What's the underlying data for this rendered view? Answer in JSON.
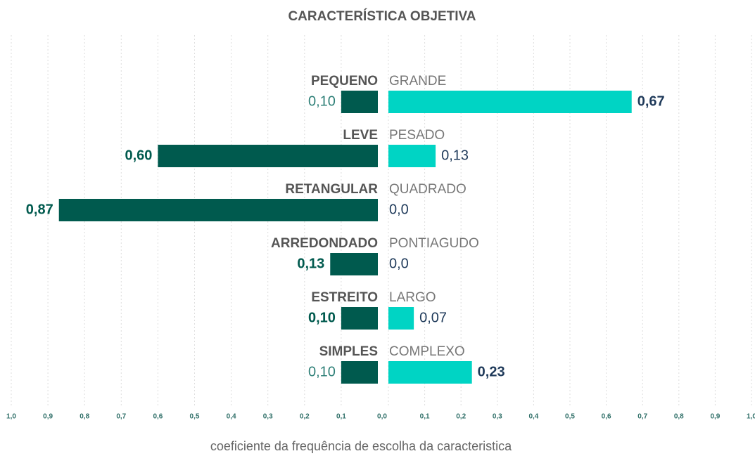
{
  "chart_data": {
    "type": "diverging-bar",
    "title": "CARACTERÍSTICA OBJETIVA",
    "xlabel": "coeficiente da frequência de escolha da caracteristica",
    "left": {
      "categories": [
        "PEQUENO",
        "LEVE",
        "RETANGULAR",
        "ARREDONDADO",
        "ESTREITO",
        "SIMPLES"
      ],
      "values": [
        0.1,
        0.6,
        0.87,
        0.13,
        0.1,
        0.1
      ],
      "value_labels": [
        "0,10",
        "0,60",
        "0,87",
        "0,13",
        "0,10",
        "0,10"
      ],
      "color": "#005a4e",
      "xlim": [
        0,
        1
      ],
      "xticks": [
        {
          "value": 1.0,
          "label": "1,0"
        },
        {
          "value": 0.9,
          "label": "0,9"
        },
        {
          "value": 0.8,
          "label": "0,8"
        },
        {
          "value": 0.7,
          "label": "0,7"
        },
        {
          "value": 0.6,
          "label": "0,6"
        },
        {
          "value": 0.5,
          "label": "0,5"
        },
        {
          "value": 0.4,
          "label": "0,4"
        },
        {
          "value": 0.3,
          "label": "0,3"
        },
        {
          "value": 0.2,
          "label": "0,2"
        },
        {
          "value": 0.1,
          "label": "0,1"
        }
      ]
    },
    "right": {
      "categories": [
        "GRANDE",
        "PESADO",
        "QUADRADO",
        "PONTIAGUDO",
        "LARGO",
        "COMPLEXO"
      ],
      "values": [
        0.67,
        0.13,
        0,
        0,
        0.07,
        0.23
      ],
      "value_labels": [
        "0,67",
        "0,13",
        "0,0",
        "0,0",
        "0,07",
        "0,23"
      ],
      "color": "#00d4c4",
      "xlim": [
        0,
        1
      ],
      "xticks": [
        {
          "value": 0.0,
          "label": "0,0"
        },
        {
          "value": 0.1,
          "label": "0,1"
        },
        {
          "value": 0.2,
          "label": "0,2"
        },
        {
          "value": 0.3,
          "label": "0,3"
        },
        {
          "value": 0.4,
          "label": "0,4"
        },
        {
          "value": 0.5,
          "label": "0,5"
        },
        {
          "value": 0.6,
          "label": "0,6"
        },
        {
          "value": 0.7,
          "label": "0,7"
        },
        {
          "value": 0.8,
          "label": "0,8"
        },
        {
          "value": 0.9,
          "label": "0,9"
        },
        {
          "value": 1.0,
          "label": "1,0"
        }
      ]
    },
    "grid": true
  }
}
